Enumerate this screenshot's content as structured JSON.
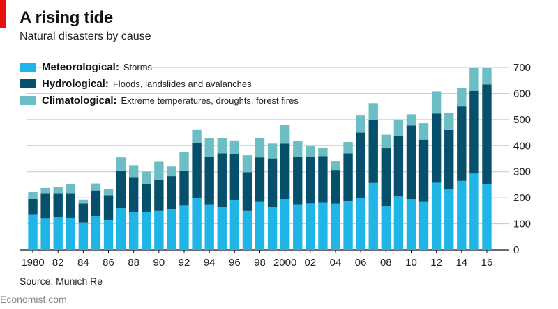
{
  "header": {
    "title": "A rising tide",
    "subtitle": "Natural disasters by cause"
  },
  "legend": [
    {
      "name": "Meteorological:",
      "desc": "Storms",
      "color": "#1fb5e6"
    },
    {
      "name": "Hydrological:",
      "desc": "Floods, landslides and avalanches",
      "color": "#06506b"
    },
    {
      "name": "Climatological:",
      "desc": "Extreme temperatures, droughts, forest fires",
      "color": "#6bbfc4"
    }
  ],
  "footer": {
    "source": "Source: Munich Re",
    "brand": "Economist.com"
  },
  "chart_data": {
    "type": "bar",
    "stacked": true,
    "title": "A rising tide",
    "subtitle": "Natural disasters by cause",
    "categories": [
      "1980",
      "1981",
      "1982",
      "1983",
      "1984",
      "1985",
      "1986",
      "1987",
      "1988",
      "1989",
      "1990",
      "1991",
      "1992",
      "1993",
      "1994",
      "1995",
      "1996",
      "1997",
      "1998",
      "1999",
      "2000",
      "2001",
      "2002",
      "2003",
      "2004",
      "2005",
      "2006",
      "2007",
      "2008",
      "2009",
      "2010",
      "2011",
      "2012",
      "2013",
      "2014",
      "2015",
      "2016"
    ],
    "x_tick_labels": [
      {
        "index": 0,
        "label": "1980"
      },
      {
        "index": 2,
        "label": "82"
      },
      {
        "index": 4,
        "label": "84"
      },
      {
        "index": 6,
        "label": "86"
      },
      {
        "index": 8,
        "label": "88"
      },
      {
        "index": 10,
        "label": "90"
      },
      {
        "index": 12,
        "label": "92"
      },
      {
        "index": 14,
        "label": "94"
      },
      {
        "index": 16,
        "label": "96"
      },
      {
        "index": 18,
        "label": "98"
      },
      {
        "index": 20,
        "label": "2000"
      },
      {
        "index": 22,
        "label": "02"
      },
      {
        "index": 24,
        "label": "04"
      },
      {
        "index": 26,
        "label": "06"
      },
      {
        "index": 28,
        "label": "08"
      },
      {
        "index": 30,
        "label": "10"
      },
      {
        "index": 32,
        "label": "12"
      },
      {
        "index": 34,
        "label": "14"
      },
      {
        "index": 36,
        "label": "16"
      }
    ],
    "series": [
      {
        "name": "Meteorological",
        "color": "#1fb5e6",
        "values": [
          135,
          122,
          125,
          123,
          105,
          130,
          115,
          160,
          145,
          147,
          150,
          155,
          170,
          198,
          175,
          165,
          190,
          150,
          185,
          165,
          195,
          175,
          178,
          183,
          177,
          187,
          200,
          257,
          168,
          205,
          195,
          185,
          258,
          232,
          265,
          293,
          253
        ]
      },
      {
        "name": "Hydrological",
        "color": "#06506b",
        "values": [
          60,
          93,
          90,
          92,
          73,
          98,
          95,
          145,
          132,
          105,
          118,
          128,
          135,
          212,
          183,
          205,
          178,
          148,
          170,
          186,
          213,
          182,
          180,
          177,
          130,
          183,
          250,
          243,
          222,
          232,
          282,
          238,
          265,
          228,
          285,
          317,
          382
        ]
      },
      {
        "name": "Climatological",
        "color": "#6bbfc4",
        "values": [
          27,
          23,
          27,
          38,
          15,
          27,
          25,
          50,
          48,
          49,
          70,
          37,
          70,
          50,
          70,
          58,
          52,
          65,
          73,
          57,
          72,
          60,
          40,
          33,
          32,
          44,
          68,
          63,
          52,
          63,
          43,
          63,
          85,
          65,
          72,
          90,
          85
        ]
      }
    ],
    "ylim": [
      0,
      700
    ],
    "yticks": [
      0,
      100,
      200,
      300,
      400,
      500,
      600,
      700
    ],
    "grid": true,
    "legend_position": "top-left",
    "xlabel": "",
    "ylabel": ""
  }
}
